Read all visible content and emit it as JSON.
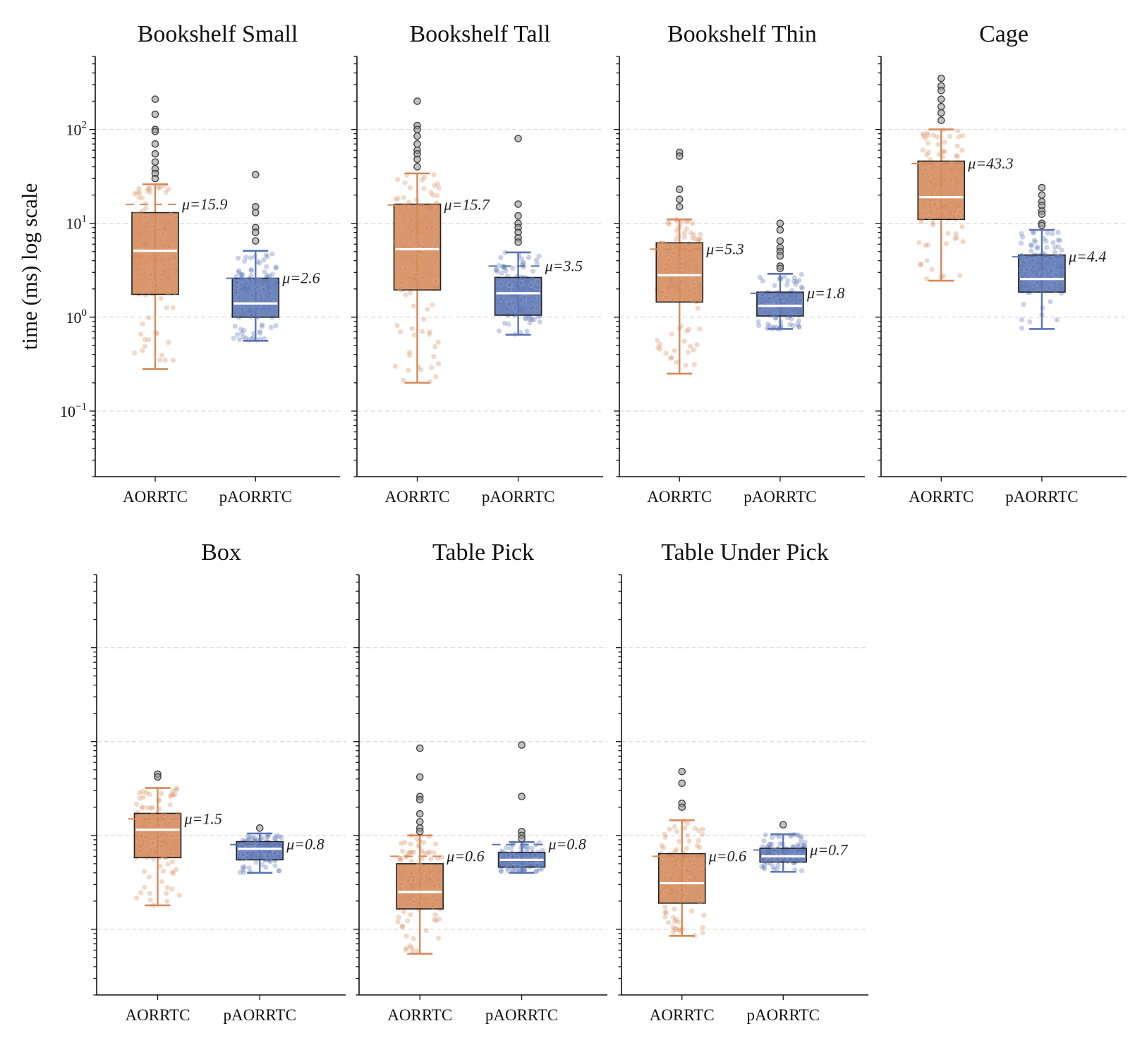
{
  "chart_data": {
    "type": "box",
    "ylabel": "time (ms) log scale",
    "yscale": "log",
    "ylim": [
      0.02,
      600
    ],
    "y_ticks": [
      {
        "value": 100,
        "base": "10",
        "exp": "2"
      },
      {
        "value": 10,
        "base": "10",
        "exp": "1"
      },
      {
        "value": 1,
        "base": "10",
        "exp": "0"
      },
      {
        "value": 0.1,
        "base": "10",
        "exp": "−1"
      }
    ],
    "grid": "horizontal dashed",
    "categories": [
      "AORRTC",
      "pAORRTC"
    ],
    "colors": {
      "AORRTC": "#d4895a",
      "pAORRTC": "#5a74b3",
      "median": "#ffffff",
      "outlier": "#555555"
    },
    "panels": [
      {
        "title": "Bookshelf Small",
        "boxes": [
          {
            "label": "AORRTC",
            "mean_label": "μ=15.9",
            "mean": 15.9,
            "whisker_low": 0.28,
            "q1": 1.75,
            "median": 5.1,
            "q3": 13,
            "whisker_high": 26,
            "outliers": [
              210,
              145,
              100,
              95,
              70,
              55,
              45,
              38,
              34,
              30
            ]
          },
          {
            "label": "pAORRTC",
            "mean_label": "μ=2.6",
            "mean": 2.6,
            "whisker_low": 0.56,
            "q1": 1.0,
            "median": 1.4,
            "q3": 2.6,
            "whisker_high": 5.1,
            "outliers": [
              33,
              15,
              13,
              9,
              8,
              6.5
            ]
          }
        ]
      },
      {
        "title": "Bookshelf Tall",
        "boxes": [
          {
            "label": "AORRTC",
            "mean_label": "μ=15.7",
            "mean": 15.7,
            "whisker_low": 0.2,
            "q1": 1.95,
            "median": 5.3,
            "q3": 16,
            "whisker_high": 34,
            "outliers": [
              200,
              110,
              100,
              85,
              70,
              60,
              55,
              48,
              40
            ]
          },
          {
            "label": "pAORRTC",
            "mean_label": "μ=3.5",
            "mean": 3.5,
            "whisker_low": 0.65,
            "q1": 1.05,
            "median": 1.8,
            "q3": 2.65,
            "whisker_high": 4.9,
            "outliers": [
              80,
              16,
              12,
              10,
              9,
              8,
              7,
              6.3
            ]
          }
        ]
      },
      {
        "title": "Bookshelf Thin",
        "boxes": [
          {
            "label": "AORRTC",
            "mean_label": "μ=5.3",
            "mean": 5.3,
            "whisker_low": 0.25,
            "q1": 1.45,
            "median": 2.8,
            "q3": 6.2,
            "whisker_high": 11,
            "outliers": [
              57,
              52,
              23,
              18,
              15
            ]
          },
          {
            "label": "pAORRTC",
            "mean_label": "μ=1.8",
            "mean": 1.8,
            "whisker_low": 0.75,
            "q1": 1.03,
            "median": 1.32,
            "q3": 1.85,
            "whisker_high": 2.9,
            "outliers": [
              10,
              8.5,
              6.5,
              5.5,
              5,
              4.5,
              3.5,
              3.3
            ]
          }
        ]
      },
      {
        "title": "Cage",
        "boxes": [
          {
            "label": "AORRTC",
            "mean_label": "μ=43.3",
            "mean": 43.3,
            "whisker_low": 2.45,
            "q1": 11,
            "median": 19,
            "q3": 46,
            "whisker_high": 100,
            "outliers": [
              350,
              290,
              260,
              210,
              175,
              150,
              125
            ]
          },
          {
            "label": "pAORRTC",
            "mean_label": "μ=4.4",
            "mean": 4.4,
            "whisker_low": 0.75,
            "q1": 1.85,
            "median": 2.55,
            "q3": 4.6,
            "whisker_high": 8.5,
            "outliers": [
              24,
              20,
              17,
              15.5,
              13.5,
              12.5,
              10,
              9.5
            ]
          }
        ]
      },
      {
        "title": "Box",
        "boxes": [
          {
            "label": "AORRTC",
            "mean_label": "μ=1.5",
            "mean": 1.5,
            "whisker_low": 0.18,
            "q1": 0.58,
            "median": 1.15,
            "q3": 1.72,
            "whisker_high": 3.2,
            "outliers": [
              4.5,
              4.2
            ]
          },
          {
            "label": "pAORRTC",
            "mean_label": "μ=0.8",
            "mean": 0.8,
            "whisker_low": 0.4,
            "q1": 0.55,
            "median": 0.72,
            "q3": 0.86,
            "whisker_high": 1.05,
            "outliers": [
              1.2
            ]
          }
        ]
      },
      {
        "title": "Table Pick",
        "boxes": [
          {
            "label": "AORRTC",
            "mean_label": "μ=0.6",
            "mean": 0.6,
            "whisker_low": 0.055,
            "q1": 0.165,
            "median": 0.25,
            "q3": 0.5,
            "whisker_high": 1.0,
            "outliers": [
              8.5,
              4.2,
              2.6,
              2.4,
              1.7,
              1.4,
              1.2,
              1.1
            ]
          },
          {
            "label": "pAORRTC",
            "mean_label": "μ=0.8",
            "mean": 0.8,
            "whisker_low": 0.4,
            "q1": 0.46,
            "median": 0.55,
            "q3": 0.66,
            "whisker_high": 0.85,
            "outliers": [
              9.2,
              2.6,
              1.1,
              1.0,
              0.92
            ]
          }
        ]
      },
      {
        "title": "Table Under Pick",
        "boxes": [
          {
            "label": "AORRTC",
            "mean_label": "μ=0.6",
            "mean": 0.6,
            "whisker_low": 0.085,
            "q1": 0.19,
            "median": 0.31,
            "q3": 0.64,
            "whisker_high": 1.45,
            "outliers": [
              4.8,
              3.6,
              2.2,
              2.0
            ]
          },
          {
            "label": "pAORRTC",
            "mean_label": "μ=0.7",
            "mean": 0.7,
            "whisker_low": 0.41,
            "q1": 0.52,
            "median": 0.6,
            "q3": 0.73,
            "whisker_high": 1.03,
            "outliers": [
              1.3
            ]
          }
        ]
      }
    ]
  }
}
